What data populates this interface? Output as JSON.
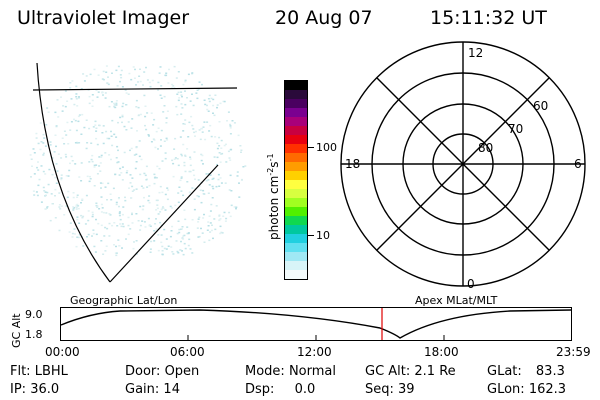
{
  "header": {
    "instrument": "Ultraviolet Imager",
    "date": "20 Aug 07",
    "time": "15:11:32 UT"
  },
  "colorbar": {
    "label": "photon cm",
    "label_exp1": "-2",
    "label_mid": "s",
    "label_exp2": "-1",
    "ticks": [
      "100",
      "10"
    ],
    "colors": [
      "#000000",
      "#2a0a3a",
      "#4a0060",
      "#7a0090",
      "#a8007a",
      "#c80040",
      "#e80010",
      "#ff3000",
      "#ff6a00",
      "#ff9c00",
      "#ffd000",
      "#ffff40",
      "#d8ff40",
      "#a0ff20",
      "#50f000",
      "#10d850",
      "#00c8a0",
      "#20d0e0",
      "#60e0f0",
      "#a0e8f4",
      "#d8f4f8",
      "#f4fbfc"
    ]
  },
  "polar_plot": {
    "mlt_labels": {
      "top": "12",
      "left": "18",
      "right": "6",
      "bottom": "0"
    },
    "lat_labels": [
      "60",
      "70",
      "80"
    ]
  },
  "left_image": {
    "frame": "Geographic Lat/Lon"
  },
  "right_image": {
    "frame": "Apex MLat/MLT"
  },
  "altitude_panel": {
    "axis_label": "GC Alt",
    "y_ticks": [
      "9.0",
      "1.8"
    ],
    "x_ticks": [
      "00:00",
      "06:00",
      "12:00",
      "18:00",
      "23:59"
    ],
    "marker_color": "#e00000"
  },
  "footer": {
    "filter_label": "Flt:",
    "filter_value": "LBHL",
    "ip_label": "IP:",
    "ip_value": "36.0",
    "door_label": "Door:",
    "door_value": "Open",
    "gain_label": "Gain:",
    "gain_value": "14",
    "mode_label": "Mode:",
    "mode_value": "Normal",
    "dsp_label": "Dsp:",
    "dsp_value": "0.0",
    "gcalt_label": "GC Alt:",
    "gcalt_value": "2.1 Re",
    "seq_label": "Seq:",
    "seq_value": "39",
    "glat_label": "GLat:",
    "glat_value": "83.3",
    "glon_label": "GLon:",
    "glon_value": "162.3"
  }
}
